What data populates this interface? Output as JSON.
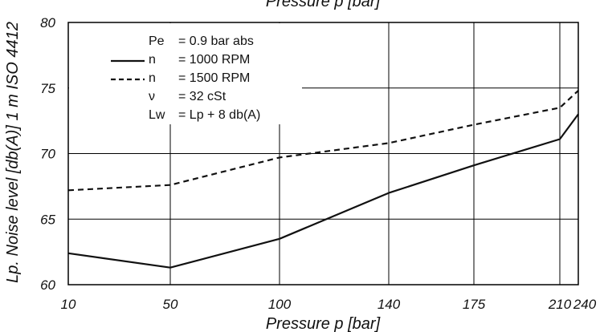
{
  "chart_data": {
    "type": "line",
    "title": "",
    "top_label": "Pressure p [bar]",
    "xlabel": "Pressure p [bar]",
    "ylabel": "Lp. Noise level [db(A)] 1 m ISO 4412",
    "categories": [
      "10",
      "50",
      "100",
      "140",
      "175",
      "210",
      "240"
    ],
    "ylim": [
      60,
      80
    ],
    "yticks": [
      "60",
      "65",
      "70",
      "75",
      "80"
    ],
    "grid": true,
    "legend_position": "top-left",
    "series": [
      {
        "name": "n = 1000 RPM",
        "style": "solid",
        "values": [
          62.4,
          61.3,
          63.5,
          67.0,
          69.1,
          71.1,
          73.0
        ]
      },
      {
        "name": "n = 1500 RPM",
        "style": "dashed",
        "values": [
          67.2,
          67.6,
          69.7,
          70.8,
          72.2,
          73.5,
          74.8
        ]
      }
    ],
    "legend": [
      {
        "sym": "Pe",
        "text": "= 0.9 bar abs",
        "style": "none"
      },
      {
        "sym": "n",
        "text": "= 1000 RPM",
        "style": "solid"
      },
      {
        "sym": "n",
        "text": "= 1500 RPM",
        "style": "dashed"
      },
      {
        "sym": "ν",
        "text": "= 32 cSt",
        "style": "none"
      },
      {
        "sym": "Lw",
        "text": "= Lp + 8 db(A)",
        "style": "none"
      }
    ],
    "colors": {
      "line": "#111111",
      "grid": "#000000",
      "background": "#ffffff"
    }
  }
}
